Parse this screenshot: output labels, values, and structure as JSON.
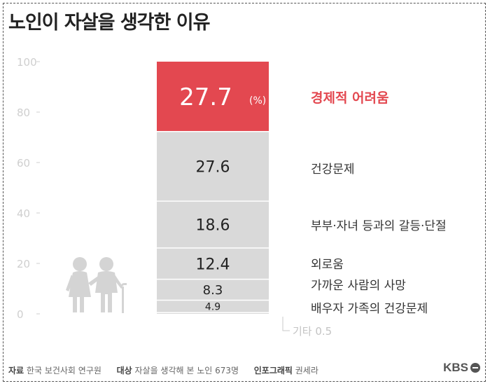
{
  "title": "노인이 자살을 생각한 이유",
  "chart_data": {
    "type": "bar",
    "subtype": "stacked-100",
    "ylim": [
      0,
      100
    ],
    "yticks": [
      0,
      20,
      40,
      60,
      80,
      100
    ],
    "unit": "(%)",
    "categories": [
      "기타",
      "배우자 가족의 건강문제",
      "가까운 사람의 사망",
      "외로움",
      "부부·자녀 등과의 갈등·단절",
      "건강문제",
      "경제적 어려움"
    ],
    "values": [
      0.5,
      4.9,
      8.3,
      12.4,
      18.6,
      27.6,
      27.7
    ],
    "value_labels": [
      "기타 0.5",
      "4.9",
      "8.3",
      "12.4",
      "18.6",
      "27.6",
      "27.7"
    ],
    "highlight_index": 6,
    "colors": {
      "highlight": "#e34850",
      "default": "#d9d9d9",
      "divider": "#ffffff"
    }
  },
  "icons": {
    "figure": "elderly-couple-icon"
  },
  "footer": {
    "source_label": "자료",
    "source_value": "한국 보건사회 연구원",
    "subject_label": "대상",
    "subject_value": "자살을 생각해 본 노인 673명",
    "graphic_label": "인포그래픽",
    "graphic_value": "권세라"
  },
  "logo": "KBS"
}
